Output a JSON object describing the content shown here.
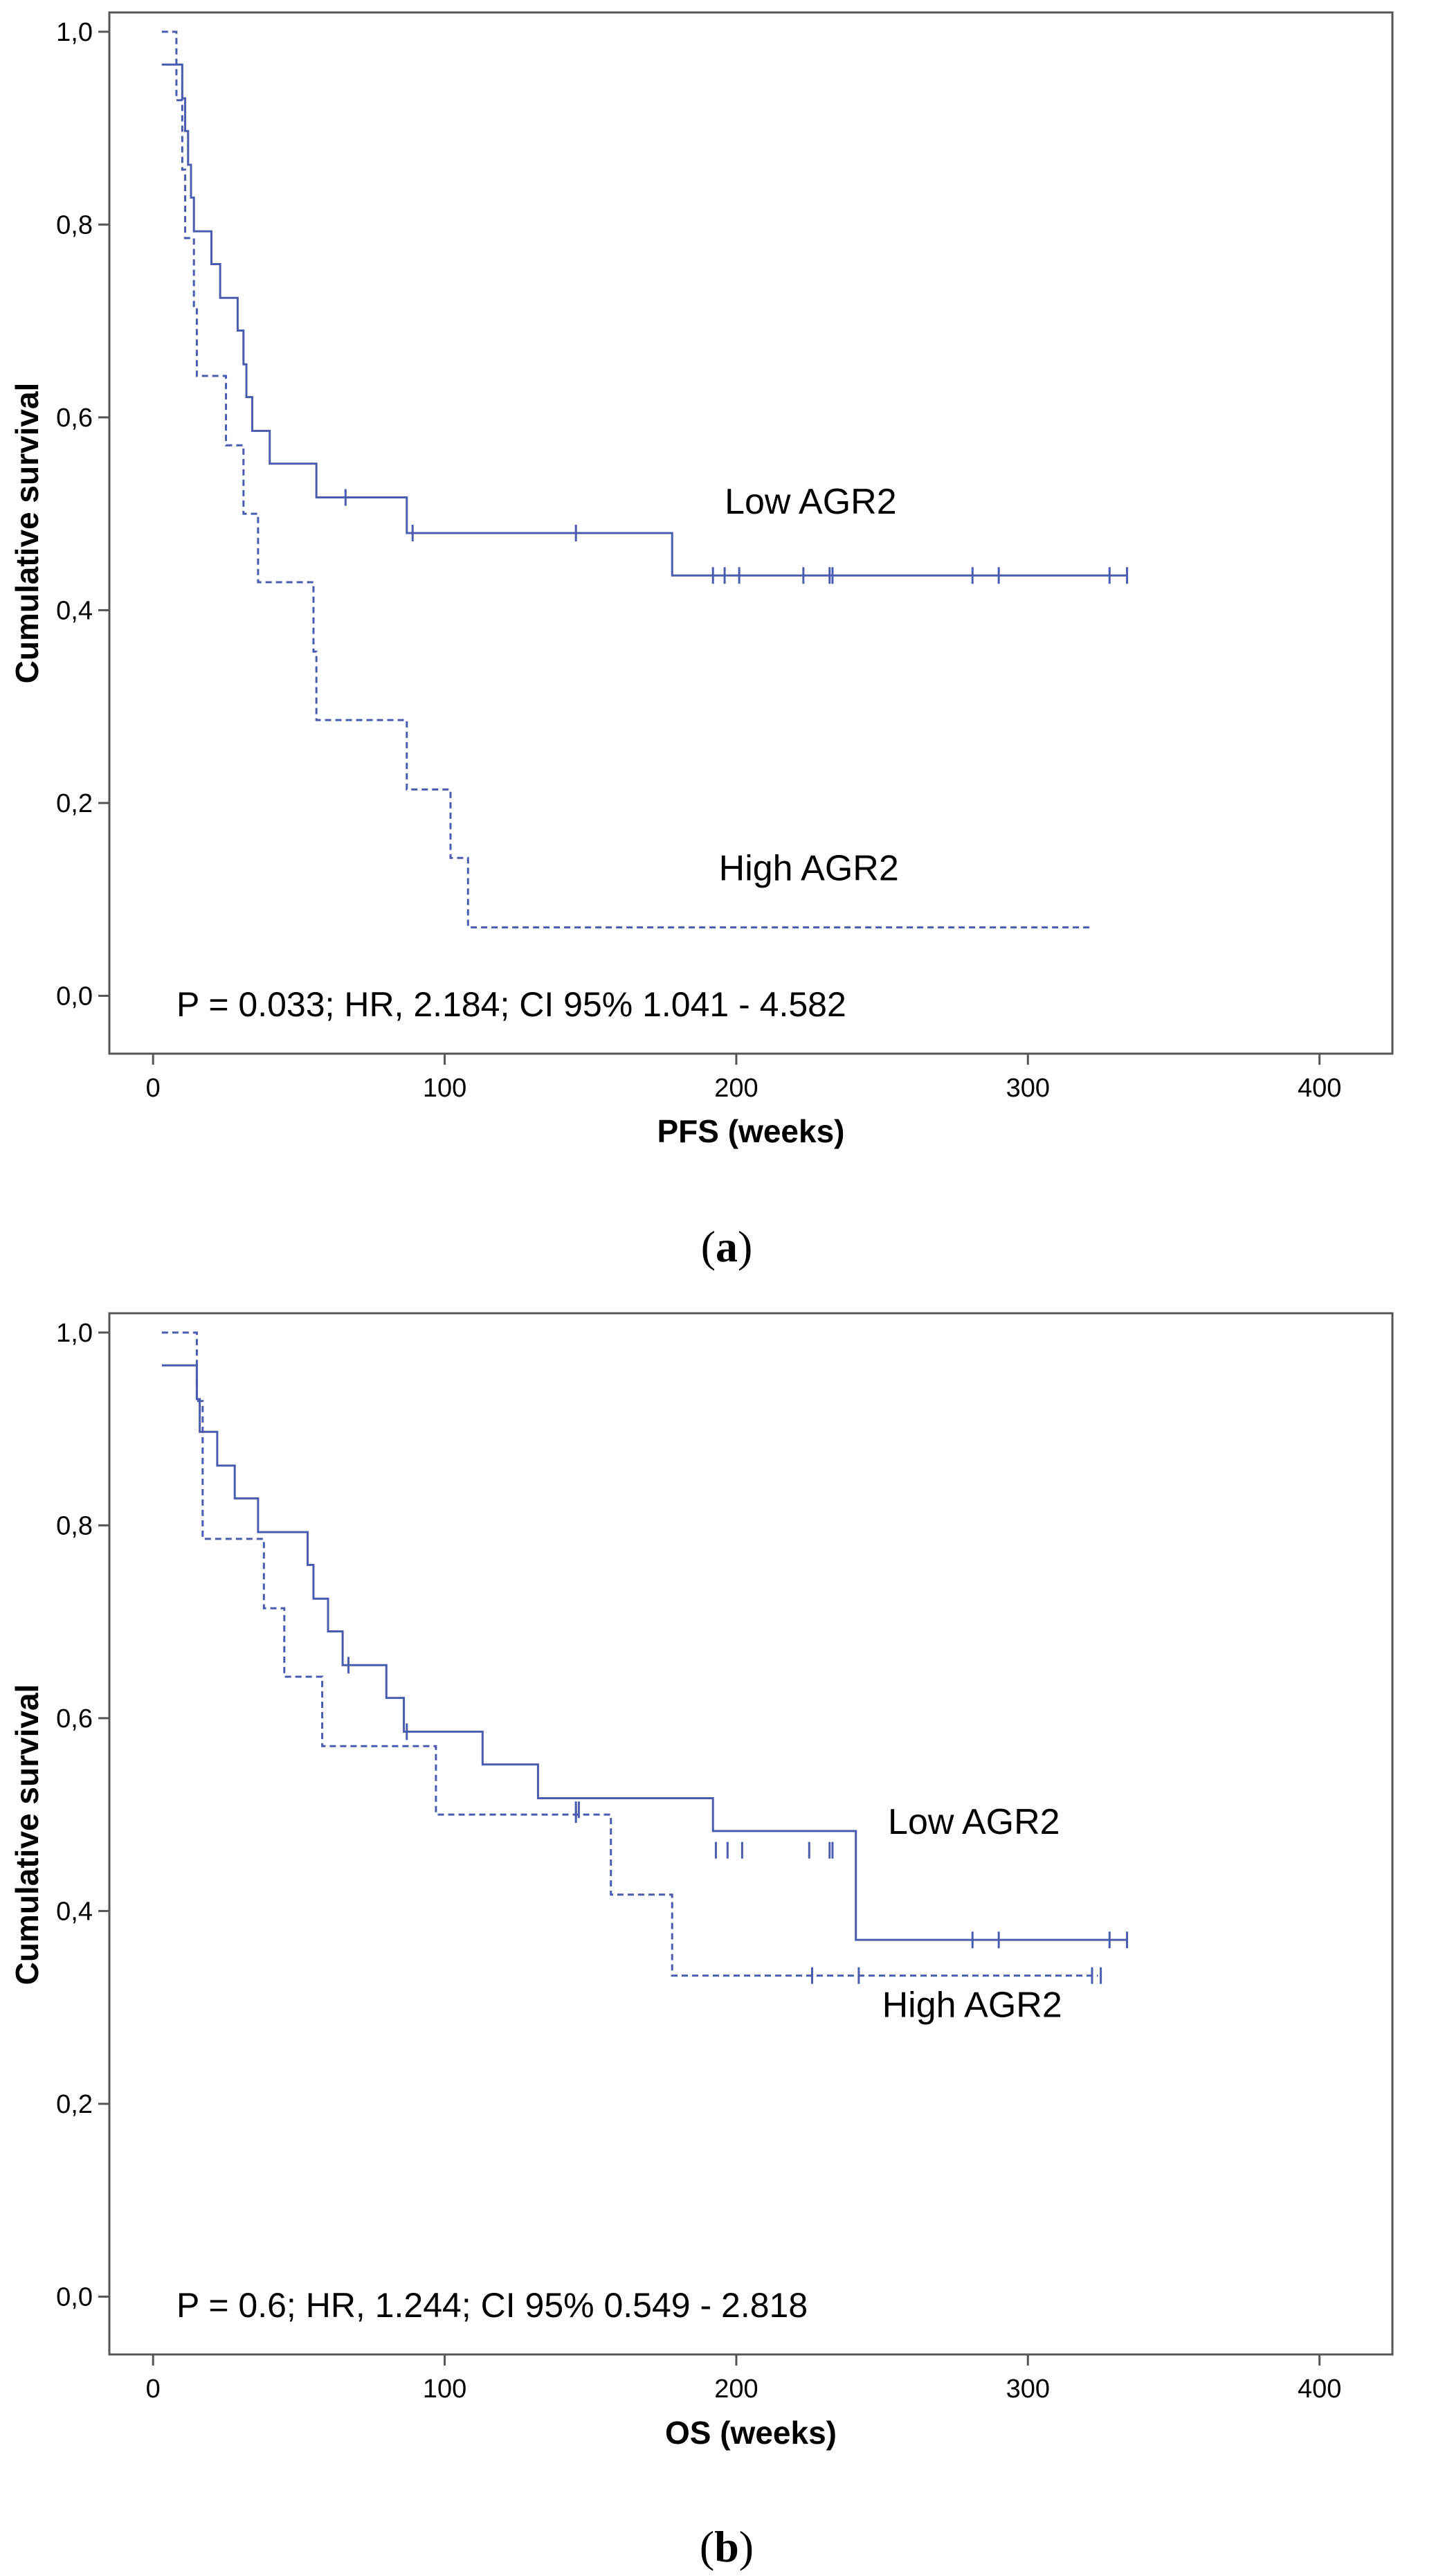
{
  "chart_data": [
    {
      "type": "line",
      "panel": "a",
      "ylabel": "Cumulative survival",
      "xlabel": "PFS (weeks)",
      "xlim": [
        -15,
        425
      ],
      "ylim": [
        -0.06,
        1.02
      ],
      "x_ticks": [
        0,
        100,
        200,
        300,
        400
      ],
      "x_tick_labels": [
        "0",
        "100",
        "200",
        "300",
        "400"
      ],
      "y_ticks": [
        0,
        0.2,
        0.4,
        0.6,
        0.8,
        1.0
      ],
      "y_tick_labels": [
        "0,0",
        "0,2",
        "0,4",
        "0,6",
        "0,8",
        "1,0"
      ],
      "annotation": "P = 0.033; HR, 2.184; CI 95% 1.041 - 4.582",
      "panel_label": {
        "open": "(",
        "letter": "a",
        "close": ")"
      },
      "series": [
        {
          "name": "Low AGR2",
          "style": "solid",
          "color": "#4a5cb0",
          "label": "Low AGR2",
          "label_at": [
            196,
            0.5
          ],
          "steps": [
            [
              3,
              0.966
            ],
            [
              10,
              0.931
            ],
            [
              11,
              0.897
            ],
            [
              12,
              0.862
            ],
            [
              13,
              0.828
            ],
            [
              14,
              0.793
            ],
            [
              20,
              0.759
            ],
            [
              23,
              0.724
            ],
            [
              29,
              0.69
            ],
            [
              31,
              0.655
            ],
            [
              32,
              0.621
            ],
            [
              34,
              0.586
            ],
            [
              40,
              0.552
            ],
            [
              56,
              0.517
            ],
            [
              87,
              0.48
            ],
            [
              178,
              0.436
            ]
          ],
          "end_x": 334,
          "censors": [
            [
              66,
              0.517
            ],
            [
              89,
              0.48
            ],
            [
              145,
              0.48
            ],
            [
              192,
              0.436
            ],
            [
              196,
              0.436
            ],
            [
              201,
              0.436
            ],
            [
              223,
              0.436
            ],
            [
              232,
              0.436
            ],
            [
              233,
              0.436
            ],
            [
              281,
              0.436
            ],
            [
              290,
              0.436
            ],
            [
              328,
              0.436
            ],
            [
              334,
              0.436
            ]
          ]
        },
        {
          "name": "High AGR2",
          "style": "dashed",
          "color": "#4a5cb0",
          "label": "High AGR2",
          "label_at": [
            194,
            0.12
          ],
          "steps": [
            [
              3,
              1.0
            ],
            [
              8,
              0.929
            ],
            [
              10,
              0.857
            ],
            [
              11,
              0.786
            ],
            [
              14,
              0.714
            ],
            [
              15,
              0.643
            ],
            [
              25,
              0.571
            ],
            [
              31,
              0.5
            ],
            [
              36,
              0.429
            ],
            [
              55,
              0.357
            ],
            [
              56,
              0.286
            ],
            [
              87,
              0.214
            ],
            [
              102,
              0.143
            ],
            [
              108,
              0.071
            ]
          ],
          "end_x": 322,
          "censors": []
        }
      ]
    },
    {
      "type": "line",
      "panel": "b",
      "ylabel": "Cumulative survival",
      "xlabel": "OS (weeks)",
      "xlim": [
        -15,
        425
      ],
      "ylim": [
        -0.06,
        1.02
      ],
      "x_ticks": [
        0,
        100,
        200,
        300,
        400
      ],
      "x_tick_labels": [
        "0",
        "100",
        "200",
        "300",
        "400"
      ],
      "y_ticks": [
        0,
        0.2,
        0.4,
        0.6,
        0.8,
        1.0
      ],
      "y_tick_labels": [
        "0,0",
        "0,2",
        "0,4",
        "0,6",
        "0,8",
        "1,0"
      ],
      "annotation": "P = 0.6; HR, 1.244; CI 95% 0.549 - 2.818",
      "panel_label": {
        "open": "(",
        "letter": "b",
        "close": ")"
      },
      "series": [
        {
          "name": "Low AGR2",
          "style": "solid",
          "color": "#4a5cb0",
          "label": "Low AGR2",
          "label_at": [
            252,
            0.48
          ],
          "steps": [
            [
              3,
              0.966
            ],
            [
              15,
              0.931
            ],
            [
              16,
              0.897
            ],
            [
              22,
              0.862
            ],
            [
              28,
              0.828
            ],
            [
              36,
              0.793
            ],
            [
              53,
              0.759
            ],
            [
              55,
              0.724
            ],
            [
              60,
              0.69
            ],
            [
              65,
              0.655
            ],
            [
              80,
              0.621
            ],
            [
              86,
              0.586
            ],
            [
              113,
              0.552
            ],
            [
              132,
              0.517
            ],
            [
              192,
              0.483
            ],
            [
              241,
              0.37
            ]
          ],
          "end_x": 334,
          "censors": [
            [
              67,
              0.655
            ],
            [
              87,
              0.586
            ],
            [
              145,
              0.505
            ],
            [
              146,
              0.505
            ],
            [
              193,
              0.463
            ],
            [
              197,
              0.463
            ],
            [
              202,
              0.463
            ],
            [
              225,
              0.463
            ],
            [
              232,
              0.463
            ],
            [
              233,
              0.463
            ],
            [
              281,
              0.37
            ],
            [
              290,
              0.37
            ],
            [
              328,
              0.37
            ],
            [
              334,
              0.37
            ]
          ]
        },
        {
          "name": "High AGR2",
          "style": "dashed",
          "color": "#4a5cb0",
          "label": "High AGR2",
          "label_at": [
            250,
            0.29
          ],
          "steps": [
            [
              3,
              1.0
            ],
            [
              15,
              0.929
            ],
            [
              17,
              0.786
            ],
            [
              38,
              0.714
            ],
            [
              45,
              0.643
            ],
            [
              58,
              0.571
            ],
            [
              97,
              0.5
            ],
            [
              157,
              0.417
            ],
            [
              178,
              0.333
            ]
          ],
          "end_x": 324,
          "censors": [
            [
              145,
              0.5
            ],
            [
              226,
              0.333
            ],
            [
              242,
              0.333
            ],
            [
              322,
              0.333
            ],
            [
              325,
              0.333
            ]
          ]
        }
      ]
    }
  ]
}
